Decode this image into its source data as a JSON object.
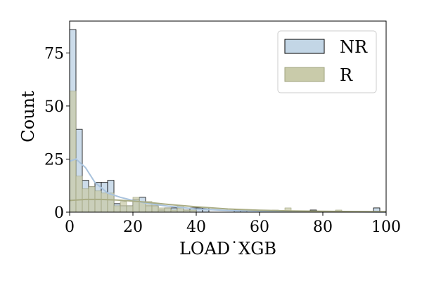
{
  "chart_data": {
    "type": "bar",
    "title": "",
    "xlabel": "LOAD˙XGB",
    "ylabel": "Count",
    "xlim": [
      0,
      100
    ],
    "ylim": [
      0,
      90
    ],
    "xticks": [
      0,
      20,
      40,
      60,
      80,
      100
    ],
    "yticks": [
      0,
      25,
      50,
      75
    ],
    "grid": false,
    "legend_position": "top-right",
    "bin_width": 2,
    "bin_edges_start": 0,
    "series": [
      {
        "name": "NR",
        "color": "#c3d6e6",
        "edge_color": "#000000",
        "kde_color": "#a9c3dd",
        "counts": [
          86,
          39,
          15,
          12,
          14,
          14,
          15,
          4,
          3,
          3,
          6,
          7,
          3,
          3,
          1,
          2,
          2,
          2,
          1,
          2,
          2,
          2,
          0,
          0,
          0,
          0,
          1,
          1,
          0,
          0,
          0,
          0,
          0,
          0,
          0,
          0,
          0,
          0,
          1,
          0,
          0,
          0,
          0,
          0,
          0,
          0,
          0,
          0,
          2,
          0
        ],
        "kde": [
          [
            0,
            24
          ],
          [
            2,
            25
          ],
          [
            5,
            21
          ],
          [
            8,
            14
          ],
          [
            12,
            9
          ],
          [
            16,
            7
          ],
          [
            20,
            5.5
          ],
          [
            25,
            4
          ],
          [
            30,
            3
          ],
          [
            40,
            1.5
          ],
          [
            50,
            0.8
          ],
          [
            60,
            0.5
          ],
          [
            70,
            0.3
          ],
          [
            80,
            0.2
          ],
          [
            90,
            0.15
          ],
          [
            100,
            0.1
          ]
        ]
      },
      {
        "name": "R",
        "color": "#c9cbaa",
        "edge_color": "#9fa37e",
        "kde_color": "#a9ac84",
        "counts": [
          57,
          17,
          11,
          12,
          10,
          9,
          9,
          3,
          5,
          3,
          7,
          5,
          5,
          4,
          2,
          2,
          1,
          3,
          1,
          1,
          0,
          0,
          0,
          0,
          0,
          0,
          0,
          0,
          0,
          0,
          0,
          0,
          1,
          0,
          2,
          0,
          0,
          0,
          0,
          0,
          0,
          0,
          1,
          0,
          0,
          0,
          0,
          0,
          0,
          0
        ],
        "kde": [
          [
            0,
            5.5
          ],
          [
            5,
            6
          ],
          [
            10,
            6
          ],
          [
            15,
            5.7
          ],
          [
            20,
            5.2
          ],
          [
            25,
            4.6
          ],
          [
            30,
            3.8
          ],
          [
            40,
            2.5
          ],
          [
            50,
            1.5
          ],
          [
            60,
            0.9
          ],
          [
            70,
            0.6
          ],
          [
            80,
            0.4
          ],
          [
            90,
            0.3
          ],
          [
            100,
            0.2
          ]
        ]
      }
    ]
  }
}
